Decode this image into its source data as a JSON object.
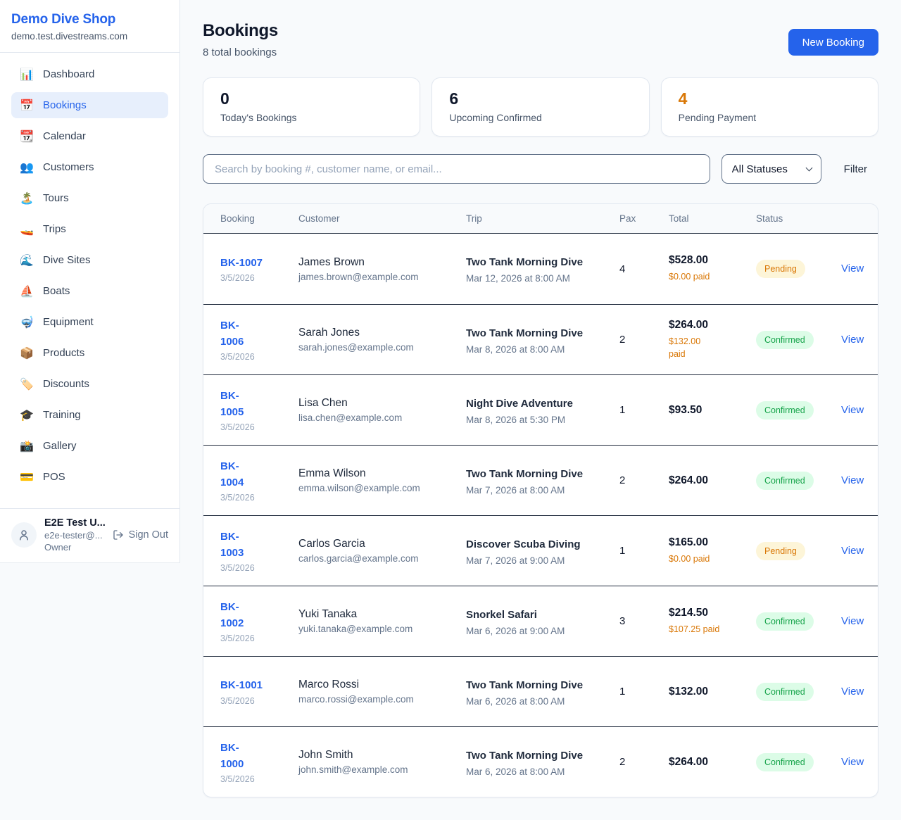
{
  "sidebar": {
    "brand": {
      "name": "Demo Dive Shop",
      "domain": "demo.test.divestreams.com"
    },
    "items": [
      {
        "label": "Dashboard",
        "icon": "📊",
        "icon_name": "bar-chart-icon",
        "active": false
      },
      {
        "label": "Bookings",
        "icon": "📅",
        "icon_name": "calendar-date-icon",
        "active": true
      },
      {
        "label": "Calendar",
        "icon": "📆",
        "icon_name": "tear-off-calendar-icon",
        "active": false
      },
      {
        "label": "Customers",
        "icon": "👥",
        "icon_name": "people-icon",
        "active": false
      },
      {
        "label": "Tours",
        "icon": "🏝️",
        "icon_name": "island-icon",
        "active": false
      },
      {
        "label": "Trips",
        "icon": "🚤",
        "icon_name": "speedboat-icon",
        "active": false
      },
      {
        "label": "Dive Sites",
        "icon": "🌊",
        "icon_name": "wave-icon",
        "active": false
      },
      {
        "label": "Boats",
        "icon": "⛵",
        "icon_name": "sailboat-icon",
        "active": false
      },
      {
        "label": "Equipment",
        "icon": "🤿",
        "icon_name": "diving-mask-icon",
        "active": false
      },
      {
        "label": "Products",
        "icon": "📦",
        "icon_name": "package-icon",
        "active": false
      },
      {
        "label": "Discounts",
        "icon": "🏷️",
        "icon_name": "tag-icon",
        "active": false
      },
      {
        "label": "Training",
        "icon": "🎓",
        "icon_name": "graduation-cap-icon",
        "active": false
      },
      {
        "label": "Gallery",
        "icon": "📸",
        "icon_name": "camera-icon",
        "active": false
      },
      {
        "label": "POS",
        "icon": "💳",
        "icon_name": "credit-card-icon",
        "active": false
      }
    ],
    "user": {
      "name": "E2E Test U...",
      "email": "e2e-tester@...",
      "role": "Owner",
      "sign_out_label": "Sign Out"
    }
  },
  "header": {
    "title": "Bookings",
    "subtitle": "8 total bookings",
    "new_booking_label": "New Booking"
  },
  "stats": [
    {
      "value": "0",
      "label": "Today's Bookings"
    },
    {
      "value": "6",
      "label": "Upcoming Confirmed"
    },
    {
      "value": "4",
      "label": "Pending Payment"
    }
  ],
  "filters": {
    "search_placeholder": "Search by booking #, customer name, or email...",
    "status_selected": "All Statuses",
    "filter_label": "Filter"
  },
  "table": {
    "columns": [
      "Booking",
      "Customer",
      "Trip",
      "Pax",
      "Total",
      "Status"
    ],
    "view_label": "View",
    "rows": [
      {
        "id": "BK-1007",
        "date": "3/5/2026",
        "customer": "James Brown",
        "email": "james.brown@example.com",
        "trip": "Two Tank Morning Dive",
        "trip_datetime": "Mar 12, 2026 at 8:00 AM",
        "pax": "4",
        "total": "$528.00",
        "paid": "$0.00 paid",
        "status": "Pending"
      },
      {
        "id": "BK-\n1006",
        "date": "3/5/2026",
        "customer": "Sarah Jones",
        "email": "sarah.jones@example.com",
        "trip": "Two Tank Morning Dive",
        "trip_datetime": "Mar 8, 2026 at 8:00 AM",
        "pax": "2",
        "total": "$264.00",
        "paid": "$132.00\npaid",
        "status": "Confirmed"
      },
      {
        "id": "BK-\n1005",
        "date": "3/5/2026",
        "customer": "Lisa Chen",
        "email": "lisa.chen@example.com",
        "trip": "Night Dive Adventure",
        "trip_datetime": "Mar 8, 2026 at 5:30 PM",
        "pax": "1",
        "total": "$93.50",
        "paid": "",
        "status": "Confirmed"
      },
      {
        "id": "BK-\n1004",
        "date": "3/5/2026",
        "customer": "Emma Wilson",
        "email": "emma.wilson@example.com",
        "trip": "Two Tank Morning Dive",
        "trip_datetime": "Mar 7, 2026 at 8:00 AM",
        "pax": "2",
        "total": "$264.00",
        "paid": "",
        "status": "Confirmed"
      },
      {
        "id": "BK-\n1003",
        "date": "3/5/2026",
        "customer": "Carlos Garcia",
        "email": "carlos.garcia@example.com",
        "trip": "Discover Scuba Diving",
        "trip_datetime": "Mar 7, 2026 at 9:00 AM",
        "pax": "1",
        "total": "$165.00",
        "paid": "$0.00 paid",
        "status": "Pending"
      },
      {
        "id": "BK-\n1002",
        "date": "3/5/2026",
        "customer": "Yuki Tanaka",
        "email": "yuki.tanaka@example.com",
        "trip": "Snorkel Safari",
        "trip_datetime": "Mar 6, 2026 at 9:00 AM",
        "pax": "3",
        "total": "$214.50",
        "paid": "$107.25 paid",
        "status": "Confirmed"
      },
      {
        "id": "BK-1001",
        "date": "3/5/2026",
        "customer": "Marco Rossi",
        "email": "marco.rossi@example.com",
        "trip": "Two Tank Morning Dive",
        "trip_datetime": "Mar 6, 2026 at 8:00 AM",
        "pax": "1",
        "total": "$132.00",
        "paid": "",
        "status": "Confirmed"
      },
      {
        "id": "BK-\n1000",
        "date": "3/5/2026",
        "customer": "John Smith",
        "email": "john.smith@example.com",
        "trip": "Two Tank Morning Dive",
        "trip_datetime": "Mar 6, 2026 at 8:00 AM",
        "pax": "2",
        "total": "$264.00",
        "paid": "",
        "status": "Confirmed"
      }
    ]
  },
  "colors": {
    "accent_blue": "#2563eb",
    "orange": "#d97706",
    "pending_badge_bg": "#fdf5d8",
    "confirmed_badge_bg": "#dcfce7",
    "confirmed_text": "#16a34a",
    "row_border": "#1e293b",
    "page_bg": "#f8fafc",
    "card_border": "#e2e8f0"
  }
}
